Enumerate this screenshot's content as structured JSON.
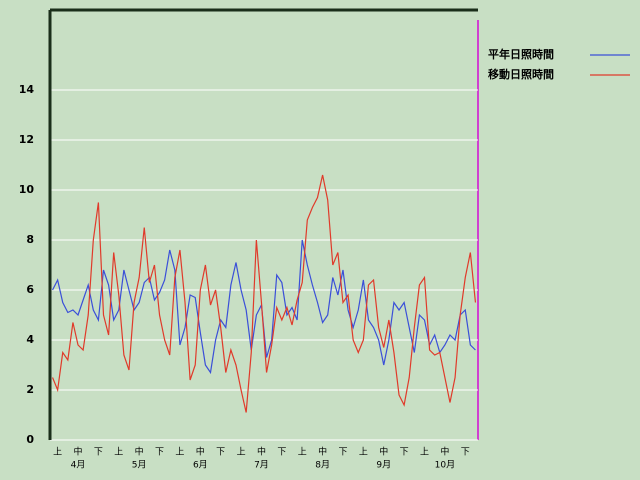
{
  "chart_data": {
    "type": "line",
    "categories": [
      null,
      "上",
      null,
      null,
      null,
      "中",
      null,
      null,
      null,
      "下",
      null,
      null,
      null,
      "上",
      null,
      null,
      null,
      "中",
      null,
      null,
      null,
      "下",
      null,
      null,
      null,
      "上",
      null,
      null,
      null,
      "中",
      null,
      null,
      null,
      "下",
      null,
      null,
      null,
      "上",
      null,
      null,
      null,
      "中",
      null,
      null,
      null,
      "下",
      null,
      null,
      null,
      "上",
      null,
      null,
      null,
      "中",
      null,
      null,
      null,
      "下",
      null,
      null,
      null,
      "上",
      null,
      null,
      null,
      "中",
      null,
      null,
      null,
      "下",
      null,
      null,
      null,
      "上",
      null,
      null,
      null,
      "中",
      null,
      null,
      null,
      "下",
      null,
      null
    ],
    "months": [
      null,
      null,
      null,
      null,
      null,
      "4月",
      null,
      null,
      null,
      null,
      null,
      null,
      null,
      null,
      null,
      null,
      null,
      "5月",
      null,
      null,
      null,
      null,
      null,
      null,
      null,
      null,
      null,
      null,
      null,
      "6月",
      null,
      null,
      null,
      null,
      null,
      null,
      null,
      null,
      null,
      null,
      null,
      "7月",
      null,
      null,
      null,
      null,
      null,
      null,
      null,
      null,
      null,
      null,
      null,
      "8月",
      null,
      null,
      null,
      null,
      null,
      null,
      null,
      null,
      null,
      null,
      null,
      "9月",
      null,
      null,
      null,
      null,
      null,
      null,
      null,
      null,
      null,
      null,
      null,
      "10月",
      null,
      null,
      null,
      null,
      null,
      null
    ],
    "series": [
      {
        "name": "平年日照時間",
        "color": "#3a4fd8",
        "values": [
          6,
          6.4,
          5.5,
          5.1,
          5.2,
          5.0,
          5.6,
          6.2,
          5.2,
          4.8,
          6.8,
          6.2,
          4.8,
          5.2,
          6.8,
          6.0,
          5.2,
          5.5,
          6.3,
          6.5,
          5.6,
          5.9,
          6.4,
          7.6,
          6.8,
          3.8,
          4.5,
          5.8,
          5.7,
          4.3,
          3.0,
          2.7,
          4.0,
          4.8,
          4.5,
          6.2,
          7.1,
          6.0,
          5.2,
          3.6,
          5.0,
          5.4,
          3.3,
          4.0,
          6.6,
          6.3,
          5.0,
          5.3,
          4.8,
          8.0,
          7.0,
          6.2,
          5.5,
          4.7,
          5.0,
          6.5,
          5.8,
          6.8,
          5.2,
          4.5,
          5.2,
          6.4,
          4.8,
          4.5,
          4.0,
          3.0,
          4.0,
          5.5,
          5.2,
          5.5,
          4.5,
          3.5,
          5.0,
          4.8,
          3.8,
          4.2,
          3.5,
          3.8,
          4.2,
          4.0,
          5.0,
          5.2,
          3.8,
          3.6
        ]
      },
      {
        "name": "移動日照時間",
        "color": "#e03a2a",
        "values": [
          2.5,
          2.0,
          3.5,
          3.2,
          4.7,
          3.8,
          3.6,
          5.0,
          8.0,
          9.5,
          5.0,
          4.2,
          7.5,
          5.8,
          3.4,
          2.8,
          5.5,
          6.5,
          8.5,
          6.3,
          7.0,
          5.0,
          4.0,
          3.4,
          6.5,
          7.6,
          5.5,
          2.4,
          3.0,
          6.0,
          7.0,
          5.4,
          6.0,
          4.5,
          2.7,
          3.6,
          3.0,
          2.0,
          1.1,
          3.5,
          8.0,
          5.5,
          2.7,
          3.8,
          5.3,
          4.8,
          5.3,
          4.6,
          5.6,
          6.3,
          8.8,
          9.3,
          9.7,
          10.6,
          9.6,
          7.0,
          7.5,
          5.5,
          5.8,
          4.0,
          3.5,
          4.0,
          6.2,
          6.4,
          4.5,
          3.7,
          4.8,
          3.5,
          1.8,
          1.4,
          2.5,
          4.5,
          6.2,
          6.5,
          3.6,
          3.4,
          3.5,
          2.5,
          1.5,
          2.5,
          5.0,
          6.5,
          7.5,
          5.5
        ]
      }
    ],
    "ylim": [
      0,
      17.2
    ],
    "yticks": [
      0,
      2,
      4,
      6,
      8,
      10,
      12,
      14
    ],
    "grid": true
  }
}
